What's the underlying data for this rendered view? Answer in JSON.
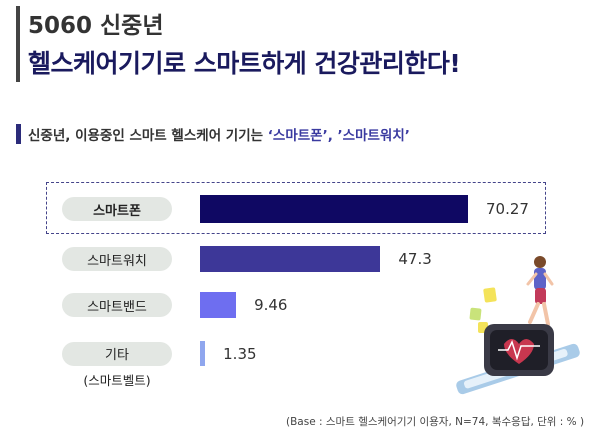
{
  "header": {
    "title_line1": "5060 신중년",
    "title_line2": "헬스케어기기로 스마트하게 건강관리한다!"
  },
  "subtitle": {
    "prefix": "신중년, 이용중인 스마트 헬스케어 기기는 ",
    "highlight": "‘스마트폰’, ’스마트워치’"
  },
  "chart_data": {
    "type": "bar",
    "orientation": "horizontal",
    "categories": [
      "스마트폰",
      "스마트워치",
      "스마트밴드",
      "기타"
    ],
    "category_notes": [
      "",
      "",
      "",
      "(스마트벨트)"
    ],
    "values": [
      70.27,
      47.3,
      9.46,
      1.35
    ],
    "value_labels": [
      "70.27",
      "47.3",
      "9.46",
      "1.35"
    ],
    "highlighted_category": "스마트폰",
    "colors": [
      "#0f0863",
      "#3d3798",
      "#6e6ef0",
      "#8fa6ee"
    ],
    "xlim": [
      0,
      100
    ]
  },
  "footnote": "(Base : 스마트 헬스케어기기 이용자, N=74,  복수응답, 단위 : % )",
  "illustration": {
    "icon": "runner-smartwatch-illustration"
  }
}
